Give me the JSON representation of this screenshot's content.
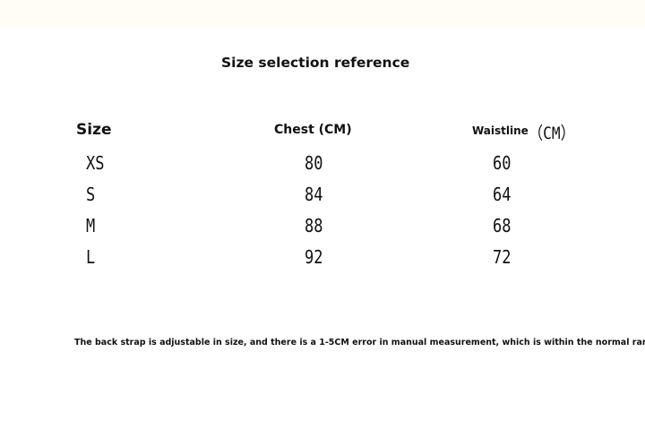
{
  "title": "Size selection reference",
  "table": {
    "columns": [
      {
        "label": "Size"
      },
      {
        "label": "Chest (CM)"
      },
      {
        "label": "Waistline",
        "unit": "（CM）"
      }
    ],
    "rows": [
      [
        "XS",
        80,
        60
      ],
      [
        "S",
        84,
        64
      ],
      [
        "M",
        88,
        68
      ],
      [
        "L",
        92,
        72
      ]
    ]
  },
  "note": "The back strap is adjustable in size, and there is a 1-5CM error in manual measurement, which is within the normal range."
}
